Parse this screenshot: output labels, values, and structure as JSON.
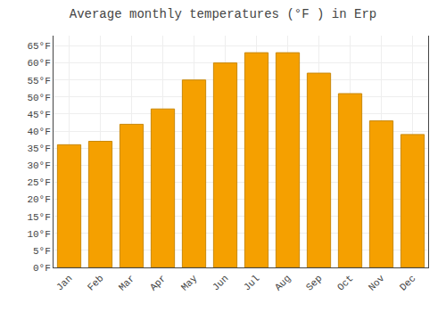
{
  "chart_data": {
    "type": "bar",
    "title": "Average monthly temperatures (°F ) in Erp",
    "categories": [
      "Jan",
      "Feb",
      "Mar",
      "Apr",
      "May",
      "Jun",
      "Jul",
      "Aug",
      "Sep",
      "Oct",
      "Nov",
      "Dec"
    ],
    "values": [
      36,
      37,
      42,
      46.5,
      55,
      60,
      63,
      63,
      57,
      51,
      43,
      39
    ],
    "color": "#F5A000",
    "ylim": [
      0,
      68
    ],
    "yticks": [
      {
        "value": 0,
        "label": "0°F"
      },
      {
        "value": 5,
        "label": "5°F"
      },
      {
        "value": 10,
        "label": "10°F"
      },
      {
        "value": 15,
        "label": "15°F"
      },
      {
        "value": 20,
        "label": "20°F"
      },
      {
        "value": 25,
        "label": "25°F"
      },
      {
        "value": 30,
        "label": "30°F"
      },
      {
        "value": 35,
        "label": "35°F"
      },
      {
        "value": 40,
        "label": "40°F"
      },
      {
        "value": 45,
        "label": "45°F"
      },
      {
        "value": 50,
        "label": "50°F"
      },
      {
        "value": 55,
        "label": "55°F"
      },
      {
        "value": 60,
        "label": "60°F"
      },
      {
        "value": 65,
        "label": "65°F"
      }
    ],
    "grid": true
  }
}
